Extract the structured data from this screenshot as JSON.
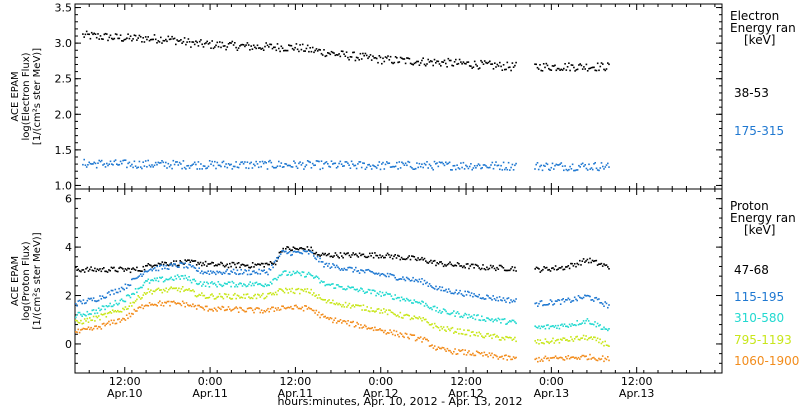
{
  "chart_data": [
    {
      "type": "scatter",
      "panel": "electron",
      "ylabel": [
        "ACE EPAM",
        "log(Electron Flux)",
        "[1/(cm²s ster MeV)]"
      ],
      "ylim": [
        0.95,
        3.55
      ],
      "yticks": [
        1.0,
        1.5,
        2.0,
        2.5,
        3.0,
        3.5
      ],
      "ytick_labels": [
        "1.0",
        "1.5",
        "2.0",
        "2.5",
        "3.0",
        "3.5"
      ],
      "legend_title": [
        "Electron",
        "Energy ran",
        "[keV]"
      ],
      "series": [
        {
          "name": "38-53",
          "color": "#000000",
          "points": [
            [
              "2012-04-10 06:00",
              3.12
            ],
            [
              "2012-04-10 12:00",
              3.08
            ],
            [
              "2012-04-10 18:00",
              3.07
            ],
            [
              "2012-04-10 22:00",
              3.0
            ],
            [
              "2012-04-11 06:00",
              2.96
            ],
            [
              "2012-04-11 12:00",
              2.95
            ],
            [
              "2012-04-11 18:00",
              2.85
            ],
            [
              "2012-04-12 00:00",
              2.78
            ],
            [
              "2012-04-12 06:00",
              2.75
            ],
            [
              "2012-04-12 12:00",
              2.72
            ],
            [
              "2012-04-12 18:00",
              2.68
            ],
            [
              "2012-04-13 00:00",
              2.68
            ],
            [
              "2012-04-13 08:00",
              2.68
            ]
          ],
          "gaps": [
            [
              "2012-04-12 19:00",
              "2012-04-12 21:30"
            ]
          ]
        },
        {
          "name": "175-315",
          "color": "#1f78d1",
          "points": [
            [
              "2012-04-10 06:00",
              1.32
            ],
            [
              "2012-04-10 12:00",
              1.31
            ],
            [
              "2012-04-11 00:00",
              1.3
            ],
            [
              "2012-04-11 12:00",
              1.3
            ],
            [
              "2012-04-12 00:00",
              1.29
            ],
            [
              "2012-04-12 12:00",
              1.29
            ],
            [
              "2012-04-13 00:00",
              1.28
            ],
            [
              "2012-04-13 08:00",
              1.28
            ]
          ],
          "gaps": [
            [
              "2012-04-12 19:00",
              "2012-04-12 21:30"
            ]
          ]
        }
      ]
    },
    {
      "type": "scatter",
      "panel": "proton",
      "ylabel": [
        "ACE EPAM",
        "log(Proton Flux)",
        "[1/(cm²s ster MeV)]"
      ],
      "ylim": [
        -1.2,
        6.4
      ],
      "yticks": [
        0,
        2,
        4,
        6
      ],
      "ytick_labels": [
        "0",
        "2",
        "4",
        "6"
      ],
      "legend_title": [
        "Proton",
        "Energy ran",
        "[keV]"
      ],
      "xlim": [
        "2012-04-10 05:00",
        "2012-04-14 00:00"
      ],
      "xticks": [
        "2012-04-10 12:00",
        "2012-04-11 00:00",
        "2012-04-11 12:00",
        "2012-04-12 00:00",
        "2012-04-12 12:00",
        "2012-04-13 00:00",
        "2012-04-13 12:00"
      ],
      "xtick_labels": [
        [
          "12:00",
          "Apr.10"
        ],
        [
          "0:00",
          "Apr.11"
        ],
        [
          "12:00",
          "Apr.11"
        ],
        [
          "0:00",
          "Apr.12"
        ],
        [
          "12:00",
          "Apr.12"
        ],
        [
          "0:00",
          "Apr.13"
        ],
        [
          "12:00",
          "Apr.13"
        ]
      ],
      "xlabel": "hours:minutes, Apr. 10, 2012 - Apr. 13, 2012",
      "series": [
        {
          "name": "47-68",
          "color": "#000000",
          "points": [
            [
              "2012-04-10 05:00",
              3.1
            ],
            [
              "2012-04-10 14:00",
              3.1
            ],
            [
              "2012-04-10 16:00",
              3.35
            ],
            [
              "2012-04-10 22:00",
              3.4
            ],
            [
              "2012-04-11 00:00",
              3.3
            ],
            [
              "2012-04-11 06:00",
              3.28
            ],
            [
              "2012-04-11 09:00",
              3.35
            ],
            [
              "2012-04-11 10:00",
              3.95
            ],
            [
              "2012-04-11 14:00",
              3.95
            ],
            [
              "2012-04-11 15:00",
              3.7
            ],
            [
              "2012-04-12 00:00",
              3.7
            ],
            [
              "2012-04-12 06:00",
              3.5
            ],
            [
              "2012-04-12 08:00",
              3.35
            ],
            [
              "2012-04-12 14:00",
              3.2
            ],
            [
              "2012-04-12 19:00",
              3.15
            ],
            [
              "2012-04-12 22:00",
              3.1
            ],
            [
              "2012-04-13 02:00",
              3.2
            ],
            [
              "2012-04-13 05:00",
              3.5
            ],
            [
              "2012-04-13 08:00",
              3.2
            ]
          ],
          "gaps": [
            [
              "2012-04-12 19:00",
              "2012-04-12 21:30"
            ]
          ]
        },
        {
          "name": "115-195",
          "color": "#1f78d1",
          "points": [
            [
              "2012-04-10 05:00",
              1.7
            ],
            [
              "2012-04-10 08:00",
              1.9
            ],
            [
              "2012-04-10 12:00",
              2.4
            ],
            [
              "2012-04-10 15:00",
              3.1
            ],
            [
              "2012-04-10 20:00",
              3.3
            ],
            [
              "2012-04-10 23:00",
              3.0
            ],
            [
              "2012-04-11 08:00",
              3.0
            ],
            [
              "2012-04-11 10:00",
              3.8
            ],
            [
              "2012-04-11 14:00",
              3.8
            ],
            [
              "2012-04-11 16:00",
              3.3
            ],
            [
              "2012-04-12 00:00",
              2.9
            ],
            [
              "2012-04-12 06:00",
              2.6
            ],
            [
              "2012-04-12 08:00",
              2.3
            ],
            [
              "2012-04-12 14:00",
              2.0
            ],
            [
              "2012-04-12 19:00",
              1.8
            ],
            [
              "2012-04-12 22:00",
              1.7
            ],
            [
              "2012-04-13 02:00",
              1.8
            ],
            [
              "2012-04-13 05:00",
              2.0
            ],
            [
              "2012-04-13 08:00",
              1.6
            ]
          ],
          "gaps": [
            [
              "2012-04-12 19:00",
              "2012-04-12 21:30"
            ]
          ]
        },
        {
          "name": "310-580",
          "color": "#22d9d0",
          "points": [
            [
              "2012-04-10 05:00",
              1.2
            ],
            [
              "2012-04-10 08:00",
              1.4
            ],
            [
              "2012-04-10 12:00",
              1.9
            ],
            [
              "2012-04-10 15:00",
              2.6
            ],
            [
              "2012-04-10 20:00",
              2.8
            ],
            [
              "2012-04-10 23:00",
              2.5
            ],
            [
              "2012-04-11 08:00",
              2.5
            ],
            [
              "2012-04-11 10:00",
              2.95
            ],
            [
              "2012-04-11 14:00",
              2.9
            ],
            [
              "2012-04-11 16:00",
              2.5
            ],
            [
              "2012-04-12 00:00",
              2.1
            ],
            [
              "2012-04-12 06:00",
              1.7
            ],
            [
              "2012-04-12 08:00",
              1.4
            ],
            [
              "2012-04-12 14:00",
              1.1
            ],
            [
              "2012-04-12 19:00",
              0.9
            ],
            [
              "2012-04-12 22:00",
              0.7
            ],
            [
              "2012-04-13 02:00",
              0.8
            ],
            [
              "2012-04-13 05:00",
              1.0
            ],
            [
              "2012-04-13 08:00",
              0.6
            ]
          ],
          "gaps": [
            [
              "2012-04-12 19:00",
              "2012-04-12 21:30"
            ]
          ]
        },
        {
          "name": "795-1193",
          "color": "#c8e61a",
          "points": [
            [
              "2012-04-10 05:00",
              0.9
            ],
            [
              "2012-04-10 08:00",
              1.1
            ],
            [
              "2012-04-10 12:00",
              1.5
            ],
            [
              "2012-04-10 15:00",
              2.2
            ],
            [
              "2012-04-10 20:00",
              2.3
            ],
            [
              "2012-04-10 23:00",
              2.0
            ],
            [
              "2012-04-11 08:00",
              2.0
            ],
            [
              "2012-04-11 10:00",
              2.25
            ],
            [
              "2012-04-11 14:00",
              2.2
            ],
            [
              "2012-04-11 16:00",
              1.8
            ],
            [
              "2012-04-12 00:00",
              1.4
            ],
            [
              "2012-04-12 06:00",
              1.0
            ],
            [
              "2012-04-12 08:00",
              0.7
            ],
            [
              "2012-04-12 14:00",
              0.4
            ],
            [
              "2012-04-12 19:00",
              0.2
            ],
            [
              "2012-04-12 22:00",
              0.1
            ],
            [
              "2012-04-13 02:00",
              0.2
            ],
            [
              "2012-04-13 05:00",
              0.3
            ],
            [
              "2012-04-13 08:00",
              0.0
            ]
          ],
          "gaps": [
            [
              "2012-04-12 19:00",
              "2012-04-12 21:30"
            ]
          ]
        },
        {
          "name": "1060-1900",
          "color": "#f28c1c",
          "points": [
            [
              "2012-04-10 05:00",
              0.5
            ],
            [
              "2012-04-10 08:00",
              0.7
            ],
            [
              "2012-04-10 12:00",
              1.1
            ],
            [
              "2012-04-10 15:00",
              1.7
            ],
            [
              "2012-04-10 20:00",
              1.7
            ],
            [
              "2012-04-10 23:00",
              1.5
            ],
            [
              "2012-04-11 08:00",
              1.4
            ],
            [
              "2012-04-11 10:00",
              1.55
            ],
            [
              "2012-04-11 14:00",
              1.5
            ],
            [
              "2012-04-11 16:00",
              1.1
            ],
            [
              "2012-04-12 00:00",
              0.6
            ],
            [
              "2012-04-12 06:00",
              0.2
            ],
            [
              "2012-04-12 08:00",
              -0.2
            ],
            [
              "2012-04-12 14:00",
              -0.4
            ],
            [
              "2012-04-12 19:00",
              -0.6
            ],
            [
              "2012-04-12 22:00",
              -0.6
            ],
            [
              "2012-04-13 02:00",
              -0.55
            ],
            [
              "2012-04-13 05:00",
              -0.5
            ],
            [
              "2012-04-13 08:00",
              -0.6
            ]
          ],
          "gaps": [
            [
              "2012-04-12 19:00",
              "2012-04-12 21:30"
            ]
          ]
        }
      ]
    }
  ]
}
